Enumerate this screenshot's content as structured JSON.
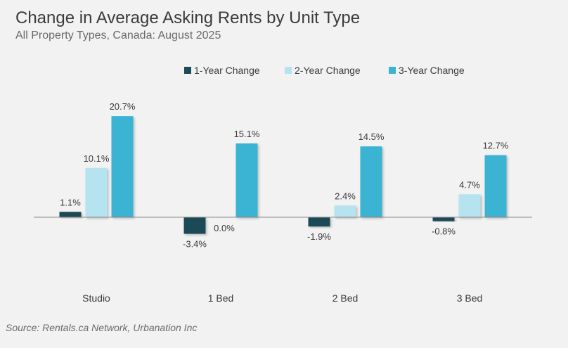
{
  "title": "Change in Average Asking Rents by Unit Type",
  "subtitle": "All Property Types, Canada: August 2025",
  "source": "Source: Rentals.ca Network, Urbanation Inc",
  "colors": {
    "one_year": "#1c4a57",
    "two_year": "#b5e3ef",
    "three_year": "#3bb3d3",
    "axis": "#8a8a8a"
  },
  "chart_data": {
    "type": "bar",
    "title": "Change in Average Asking Rents by Unit Type",
    "subtitle": "All Property Types, Canada: August 2025",
    "categories": [
      "Studio",
      "1 Bed",
      "2 Bed",
      "3 Bed"
    ],
    "series": [
      {
        "name": "1-Year Change",
        "values": [
          1.1,
          -3.4,
          -1.9,
          -0.8
        ],
        "labels": [
          "1.1%",
          "-3.4%",
          "-1.9%",
          "-0.8%"
        ]
      },
      {
        "name": "2-Year Change",
        "values": [
          10.1,
          0.0,
          2.4,
          4.7
        ],
        "labels": [
          "10.1%",
          "0.0%",
          "2.4%",
          "4.7%"
        ]
      },
      {
        "name": "3-Year Change",
        "values": [
          20.7,
          15.1,
          14.5,
          12.7
        ],
        "labels": [
          "20.7%",
          "15.1%",
          "14.5%",
          "12.7%"
        ]
      }
    ],
    "legend_position": "top",
    "grid": false
  }
}
